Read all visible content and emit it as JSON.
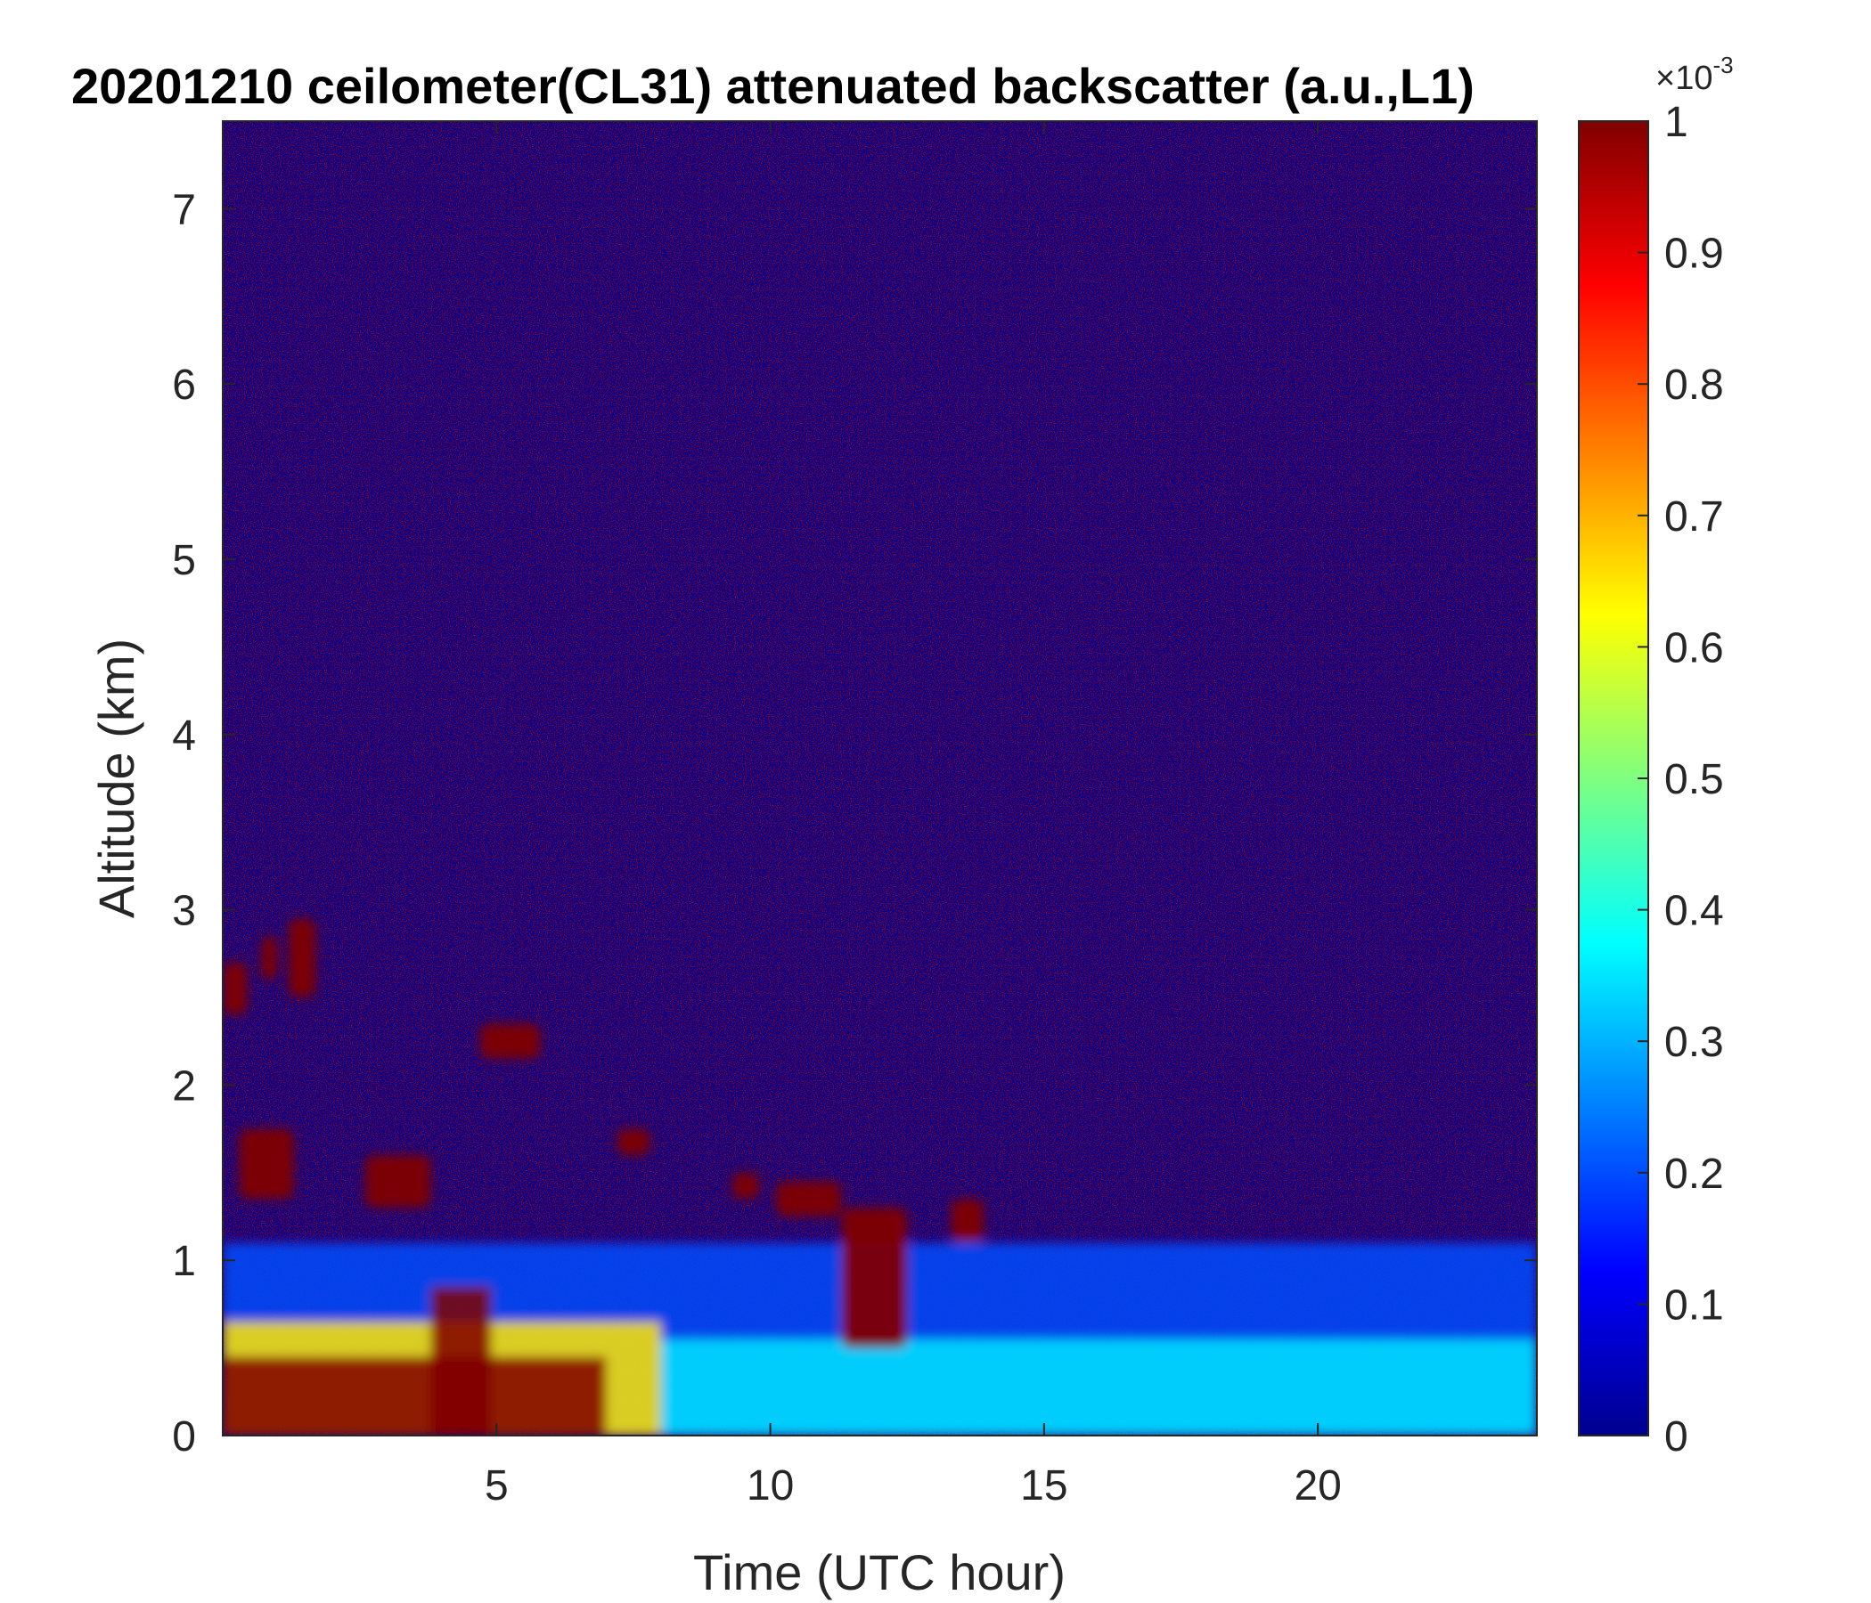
{
  "chart_data": {
    "type": "heatmap",
    "title": "20201210 ceilometer(CL31) attenuated backscatter (a.u.,L1)",
    "xlabel": "Time (UTC hour)",
    "ylabel": "Altitude (km)",
    "xlim": [
      0,
      24
    ],
    "ylim": [
      0,
      7.5
    ],
    "xticks": [
      5,
      10,
      15,
      20
    ],
    "yticks": [
      0,
      1,
      2,
      3,
      4,
      5,
      6,
      7
    ],
    "colorbar": {
      "colormap": "jet",
      "clim": [
        0,
        1
      ],
      "ticks": [
        0,
        0.1,
        0.2,
        0.3,
        0.4,
        0.5,
        0.6,
        0.7,
        0.8,
        0.9,
        1
      ],
      "multiplier_base": "×10",
      "multiplier_exponent": "-3"
    },
    "grid": false,
    "colors": {
      "background_low": "#00008F",
      "saturated_high": "#800000"
    },
    "features": [
      {
        "time_start": 0,
        "time_end": 7.0,
        "altitude_top": 0.45,
        "value": 1.0
      },
      {
        "time_start": 3.8,
        "time_end": 4.9,
        "altitude_top": 0.85,
        "value": 1.0
      },
      {
        "time_start": 0,
        "time_end": 8.0,
        "altitude_top": 0.65,
        "value": 0.65
      },
      {
        "time_start": 8.0,
        "time_end": 24,
        "altitude_top": 0.55,
        "value": 0.35
      },
      {
        "time_start": 0,
        "time_end": 24,
        "altitude_top": 1.1,
        "value": 0.2
      },
      {
        "time_start": 0.0,
        "time_end": 0.45,
        "altitude_bottom": 2.4,
        "altitude_top": 2.7,
        "value": 1.0
      },
      {
        "time_start": 0.7,
        "time_end": 1.0,
        "altitude_bottom": 2.6,
        "altitude_top": 2.85,
        "value": 1.0
      },
      {
        "time_start": 1.2,
        "time_end": 1.7,
        "altitude_bottom": 2.5,
        "altitude_top": 2.95,
        "value": 1.0
      },
      {
        "time_start": 4.7,
        "time_end": 5.8,
        "altitude_bottom": 2.15,
        "altitude_top": 2.35,
        "value": 1.0
      },
      {
        "time_start": 0.3,
        "time_end": 1.3,
        "altitude_bottom": 1.35,
        "altitude_top": 1.75,
        "value": 1.0
      },
      {
        "time_start": 2.6,
        "time_end": 3.8,
        "altitude_bottom": 1.3,
        "altitude_top": 1.6,
        "value": 1.0
      },
      {
        "time_start": 7.2,
        "time_end": 7.8,
        "altitude_bottom": 1.6,
        "altitude_top": 1.75,
        "value": 1.0
      },
      {
        "time_start": 9.3,
        "time_end": 9.8,
        "altitude_bottom": 1.35,
        "altitude_top": 1.5,
        "value": 1.0
      },
      {
        "time_start": 10.1,
        "time_end": 11.3,
        "altitude_bottom": 1.25,
        "altitude_top": 1.45,
        "value": 1.0
      },
      {
        "time_start": 11.3,
        "time_end": 12.5,
        "altitude_bottom": 0.5,
        "altitude_top": 1.3,
        "value": 1.0
      },
      {
        "time_start": 13.3,
        "time_end": 13.9,
        "altitude_bottom": 1.1,
        "altitude_top": 1.35,
        "value": 1.0
      }
    ]
  }
}
